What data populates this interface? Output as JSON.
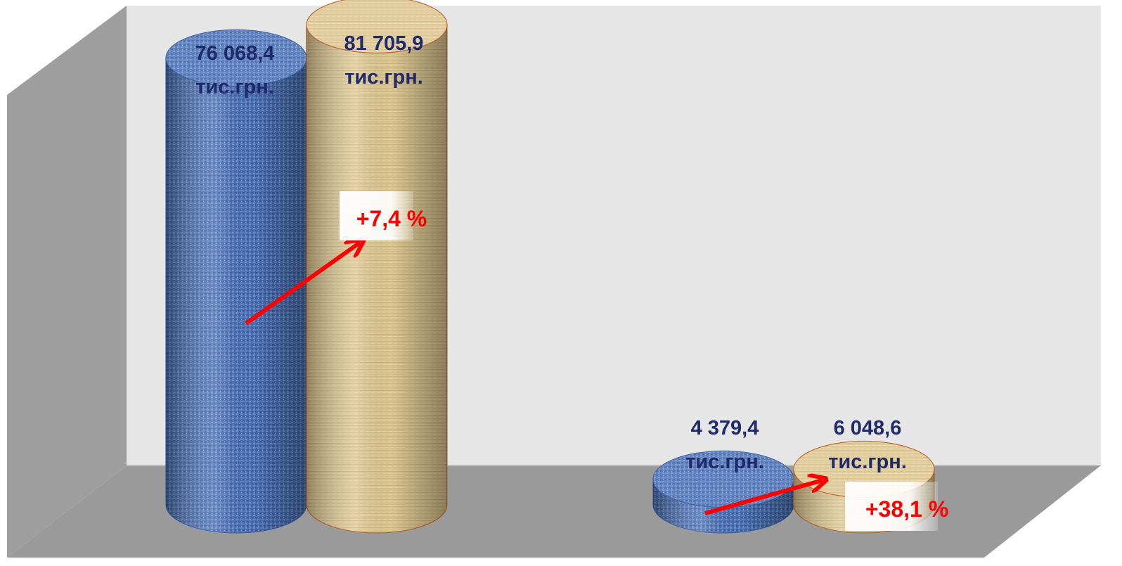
{
  "chart_data": {
    "type": "bar",
    "title": "",
    "categories": [
      "",
      ""
    ],
    "series": [
      {
        "values": [
          76068.4,
          4379.4
        ],
        "color": "#4a6fb5",
        "texture": "blue-woven"
      },
      {
        "values": [
          81705.9,
          6048.6
        ],
        "color": "#dcc58f",
        "texture": "tan-wood"
      }
    ],
    "data_labels": [
      [
        {
          "value": "76 068,4",
          "unit": "тис.грн."
        },
        {
          "value": "4 379,4",
          "unit": "тис.грн."
        }
      ],
      [
        {
          "value": "81 705,9",
          "unit": "тис.грн."
        },
        {
          "value": "6 048,6",
          "unit": "тис.грн."
        }
      ]
    ],
    "annotations": [
      {
        "text": "+7,4 %",
        "category_index": 0,
        "color": "#ff0000"
      },
      {
        "text": "+38,1 %",
        "category_index": 1,
        "color": "#ff0000"
      }
    ],
    "ylim": [
      0,
      90000
    ],
    "style": "3d-cylinder",
    "legend": "none",
    "grid": false,
    "wall_color": "#e6e6e6",
    "side_wall_color": "#9e9e9e",
    "floor_color": "#9a9a9a",
    "arrow_color": "#ff0000"
  }
}
